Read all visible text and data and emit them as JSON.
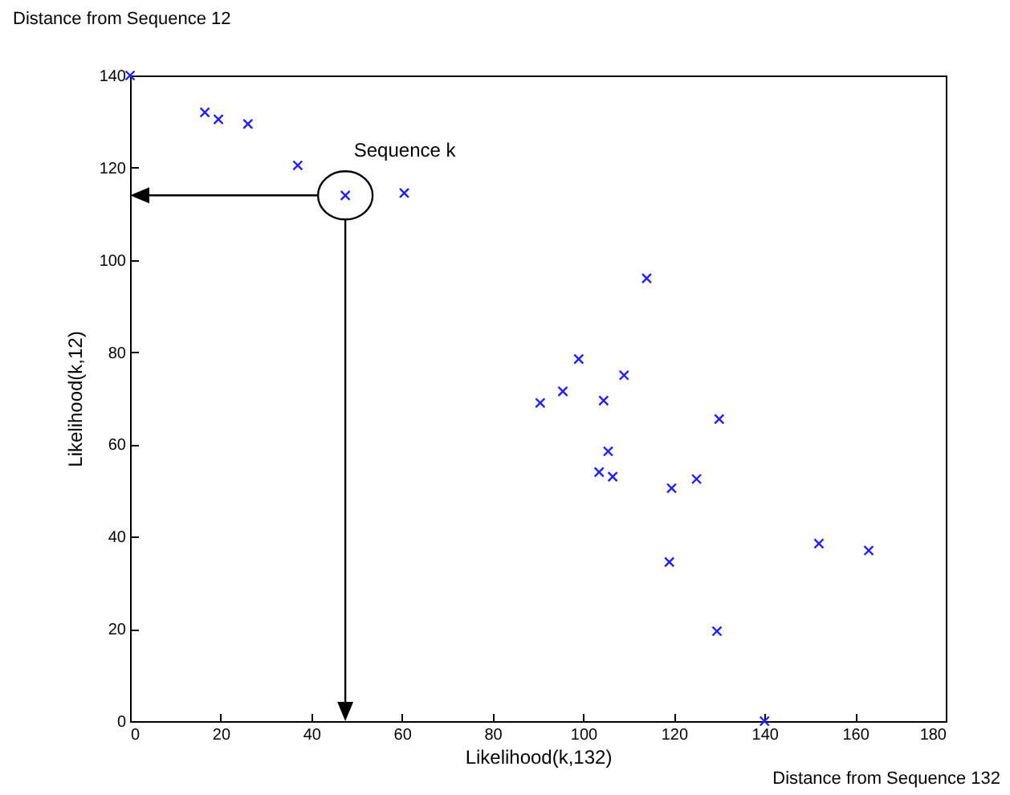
{
  "chart_data": {
    "type": "scatter",
    "title": "Distance from Sequence 12",
    "xlabel": "Likelihood(k,132)",
    "ylabel": "Likelihood(k,12)",
    "x": [
      0,
      16.5,
      19.5,
      26,
      37,
      47.5,
      60.5,
      90.5,
      95.5,
      99,
      104.5,
      109,
      114,
      103.5,
      105.5,
      106.5,
      119,
      119.5,
      125,
      129.5,
      130,
      140,
      152,
      163
    ],
    "series": [
      {
        "color": "#1f1fff",
        "values": [
          140,
          132,
          130.5,
          129.5,
          120.5,
          114,
          114.5,
          69,
          71.5,
          78.5,
          69.5,
          75,
          96,
          54,
          58.5,
          53,
          34.5,
          50.5,
          52.5,
          19.5,
          65.5,
          0,
          38.5,
          37
        ]
      }
    ],
    "xlim": [
      0,
      180
    ],
    "ylim": [
      0,
      140
    ],
    "xticks": [
      0,
      20,
      40,
      60,
      80,
      100,
      120,
      140,
      160,
      180
    ],
    "yticks": [
      0,
      20,
      40,
      60,
      80,
      100,
      120,
      140
    ],
    "grid": false,
    "legend": false,
    "marker": "cross",
    "annotations": [
      {
        "text": "Sequence k",
        "x": 47.5,
        "y": 114
      },
      "Distance from Sequence 132"
    ]
  }
}
